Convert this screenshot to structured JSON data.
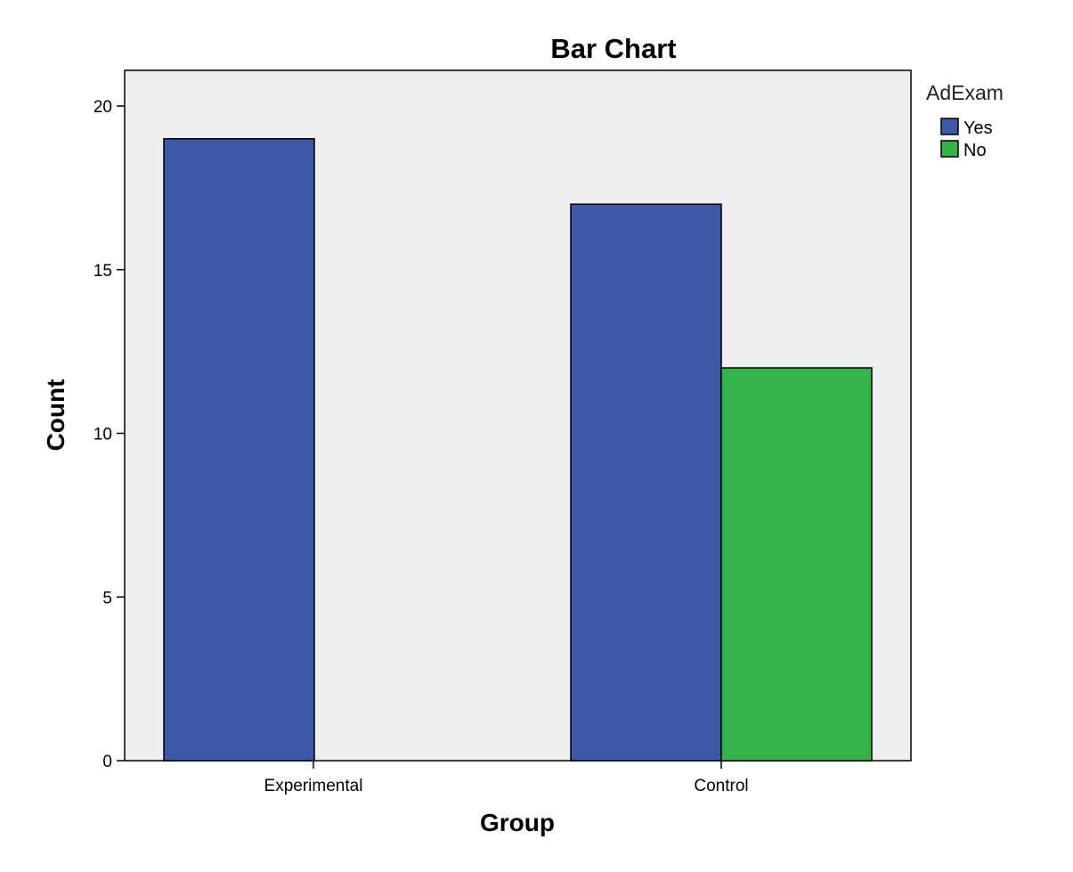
{
  "chart_data": {
    "type": "bar",
    "title": "Bar Chart",
    "xlabel": "Group",
    "ylabel": "Count",
    "categories": [
      "Experimental",
      "Control"
    ],
    "series": [
      {
        "name": "Yes",
        "values": [
          19,
          17
        ],
        "color": "#3E58A8"
      },
      {
        "name": "No",
        "values": [
          0,
          12
        ],
        "color": "#33B44A"
      }
    ],
    "ylim": [
      0,
      21
    ],
    "yticks": [
      0,
      5,
      10,
      15,
      20
    ],
    "legend_title": "AdExam",
    "legend_position": "right",
    "grid": false,
    "plot_background": "#EFEFEF"
  }
}
